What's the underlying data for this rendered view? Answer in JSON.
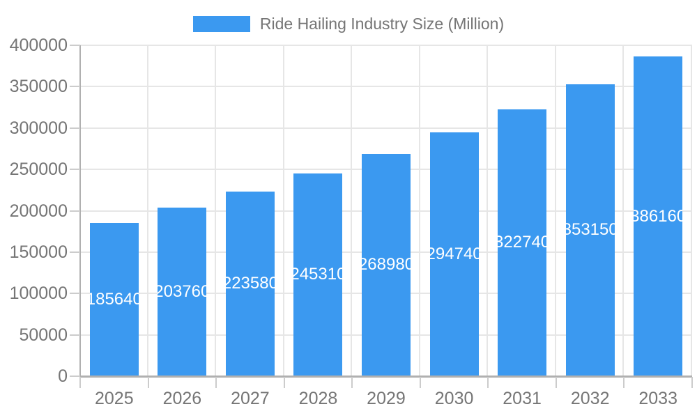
{
  "colors": {
    "bar": "#3b99f0",
    "bar_label": "#ffffff",
    "axis_text": "#757575",
    "grid": "#e6e6e6",
    "axis_line": "#b0b0b0",
    "tick": "#cccccc",
    "background": "#ffffff"
  },
  "chart_data": {
    "type": "bar",
    "title": "Ride Hailing Industry Size (Million)",
    "categories": [
      "2025",
      "2026",
      "2027",
      "2028",
      "2029",
      "2030",
      "2031",
      "2032",
      "2033"
    ],
    "values": [
      185640,
      203760,
      223580,
      245310,
      268980,
      294740,
      322740,
      353150,
      386160
    ],
    "series": [
      {
        "name": "Ride Hailing Industry Size (Million)",
        "values": [
          185640,
          203760,
          223580,
          245310,
          268980,
          294740,
          322740,
          353150,
          386160
        ]
      }
    ],
    "xlabel": "",
    "ylabel": "",
    "ylim": [
      0,
      400000
    ],
    "yticks": [
      0,
      50000,
      100000,
      150000,
      200000,
      250000,
      300000,
      350000,
      400000
    ],
    "grid": "horizontal-and-vertical",
    "legend_position": "top-center",
    "bar_value_labels": "inside-center-white"
  }
}
